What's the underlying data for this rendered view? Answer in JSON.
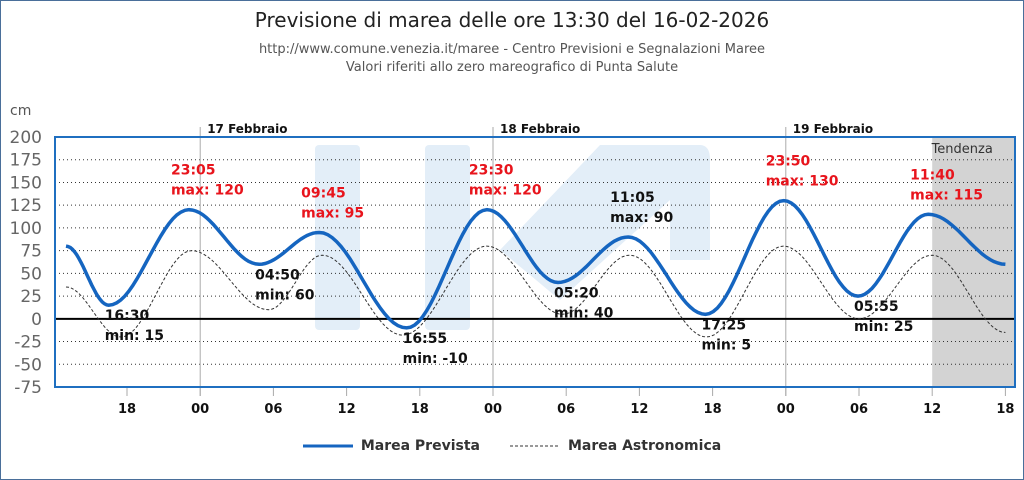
{
  "header": {
    "title": "Previsione di marea delle ore 13:30 del 16-02-2026",
    "source": "http://www.comune.venezia.it/maree - Centro Previsioni e Segnalazioni Maree",
    "reference": "Valori riferiti allo zero mareografico di Punta Salute"
  },
  "chart_data": {
    "type": "line",
    "title": "Previsione di marea delle ore 13:30 del 16-02-2026",
    "ylabel": "cm",
    "ylim": [
      -75,
      200
    ],
    "yticks": [
      "200",
      "175",
      "150",
      "125",
      "100",
      "75",
      "50",
      "25",
      "0",
      "-25",
      "-50",
      "-75"
    ],
    "ytick_values": [
      200,
      175,
      150,
      125,
      100,
      75,
      50,
      25,
      0,
      -25,
      -50,
      -75
    ],
    "x_unit": "hours since 16-02-2026 00:00",
    "xlim": [
      12,
      91
    ],
    "xticks": [
      {
        "h": 18,
        "label": "18"
      },
      {
        "h": 24,
        "label": "00"
      },
      {
        "h": 30,
        "label": "06"
      },
      {
        "h": 36,
        "label": "12"
      },
      {
        "h": 42,
        "label": "18"
      },
      {
        "h": 48,
        "label": "00"
      },
      {
        "h": 54,
        "label": "06"
      },
      {
        "h": 60,
        "label": "12"
      },
      {
        "h": 66,
        "label": "18"
      },
      {
        "h": 72,
        "label": "00"
      },
      {
        "h": 78,
        "label": "06"
      },
      {
        "h": 84,
        "label": "12"
      },
      {
        "h": 90,
        "label": "18"
      }
    ],
    "days": [
      {
        "h": 24,
        "label": "17 Febbraio"
      },
      {
        "h": 48,
        "label": "18 Febbraio"
      },
      {
        "h": 72,
        "label": "19 Febbraio"
      }
    ],
    "trend": {
      "from_h": 84,
      "label": "Tendenza"
    },
    "grid": true,
    "legend": {
      "position": "bottom",
      "items": [
        "Marea Prevista",
        "Marea Astronomica"
      ]
    },
    "series": [
      {
        "name": "Marea Prevista",
        "color": "#1565c0",
        "points": [
          [
            13,
            80
          ],
          [
            16.5,
            15
          ],
          [
            23.08,
            120
          ],
          [
            28.83,
            60
          ],
          [
            33.75,
            95
          ],
          [
            40.92,
            -10
          ],
          [
            47.5,
            120
          ],
          [
            53.33,
            40
          ],
          [
            59.08,
            90
          ],
          [
            65.42,
            5
          ],
          [
            71.83,
            130
          ],
          [
            77.92,
            25
          ],
          [
            83.67,
            115
          ],
          [
            90,
            60
          ]
        ]
      },
      {
        "name": "Marea Astronomica",
        "color": "#333333",
        "points": [
          [
            13,
            35
          ],
          [
            17.5,
            -20
          ],
          [
            23.3,
            75
          ],
          [
            29.6,
            10
          ],
          [
            34,
            70
          ],
          [
            40.6,
            -18
          ],
          [
            47.5,
            80
          ],
          [
            53.7,
            5
          ],
          [
            59.2,
            70
          ],
          [
            65.5,
            -20
          ],
          [
            71.8,
            80
          ],
          [
            78,
            0
          ],
          [
            84,
            70
          ],
          [
            90,
            -15
          ]
        ]
      }
    ],
    "annotations": [
      {
        "h": 16.5,
        "v": 15,
        "time": "16:30",
        "text": "min: 15",
        "kind": "min",
        "color": "#111111"
      },
      {
        "h": 23.08,
        "v": 120,
        "time": "23:05",
        "text": "max: 120",
        "kind": "max",
        "color": "#e8141c"
      },
      {
        "h": 28.83,
        "v": 60,
        "time": "04:50",
        "text": "min: 60",
        "kind": "min",
        "color": "#111111"
      },
      {
        "h": 33.75,
        "v": 95,
        "time": "09:45",
        "text": "max: 95",
        "kind": "max",
        "color": "#e8141c"
      },
      {
        "h": 40.92,
        "v": -10,
        "time": "16:55",
        "text": "min: -10",
        "kind": "min",
        "color": "#111111"
      },
      {
        "h": 47.5,
        "v": 120,
        "time": "23:30",
        "text": "max: 120",
        "kind": "max",
        "color": "#e8141c"
      },
      {
        "h": 53.33,
        "v": 40,
        "time": "05:20",
        "text": "min: 40",
        "kind": "min",
        "color": "#111111"
      },
      {
        "h": 59.08,
        "v": 90,
        "time": "11:05",
        "text": "max: 90",
        "kind": "max",
        "color": "#111111"
      },
      {
        "h": 65.42,
        "v": 5,
        "time": "17:25",
        "text": "min: 5",
        "kind": "min",
        "color": "#111111"
      },
      {
        "h": 71.83,
        "v": 130,
        "time": "23:50",
        "text": "max: 130",
        "kind": "max",
        "color": "#e8141c"
      },
      {
        "h": 77.92,
        "v": 25,
        "time": "05:55",
        "text": "min: 25",
        "kind": "min",
        "color": "#111111"
      },
      {
        "h": 83.67,
        "v": 115,
        "time": "11:40",
        "text": "max: 115",
        "kind": "max",
        "color": "#e8141c"
      }
    ]
  }
}
